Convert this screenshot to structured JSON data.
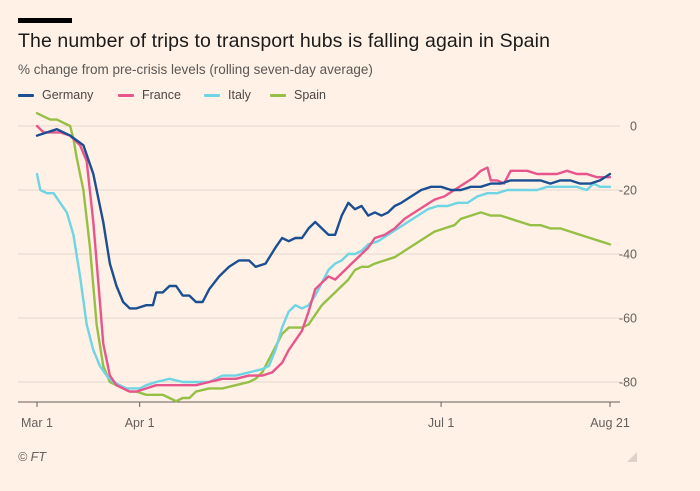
{
  "chart_data": {
    "type": "line",
    "title": "The number of trips to transport hubs is falling again in Spain",
    "subtitle": "% change from pre-crisis levels (rolling seven-day average)",
    "source": "© FT",
    "ylim": [
      -85,
      5
    ],
    "yticks": [
      0,
      -20,
      -40,
      -60,
      -80
    ],
    "ytick_labels": [
      "0",
      "-20",
      "-40",
      "-60",
      "-80"
    ],
    "xlim": [
      0,
      173
    ],
    "xticks": [
      0,
      31,
      122,
      173
    ],
    "xtick_labels": [
      "Mar 1",
      "Apr 1",
      "Jul 1",
      "Aug 21"
    ],
    "grid": true,
    "legend_placement": "top-left",
    "series": [
      {
        "name": "Germany",
        "color": "#1b4f92",
        "points": [
          [
            0,
            -3
          ],
          [
            3,
            -2
          ],
          [
            6,
            -1
          ],
          [
            10,
            -3
          ],
          [
            14,
            -6
          ],
          [
            17,
            -15
          ],
          [
            20,
            -30
          ],
          [
            22,
            -43
          ],
          [
            24,
            -50
          ],
          [
            26,
            -55
          ],
          [
            28,
            -57
          ],
          [
            30,
            -57
          ],
          [
            33,
            -56
          ],
          [
            35,
            -56
          ],
          [
            36,
            -52
          ],
          [
            38,
            -52
          ],
          [
            40,
            -50
          ],
          [
            42,
            -50
          ],
          [
            44,
            -53
          ],
          [
            46,
            -53
          ],
          [
            48,
            -55
          ],
          [
            50,
            -55
          ],
          [
            52,
            -51
          ],
          [
            55,
            -47
          ],
          [
            58,
            -44
          ],
          [
            61,
            -42
          ],
          [
            64,
            -42
          ],
          [
            66,
            -44
          ],
          [
            69,
            -43
          ],
          [
            72,
            -38
          ],
          [
            74,
            -35
          ],
          [
            76,
            -36
          ],
          [
            78,
            -35
          ],
          [
            80,
            -35
          ],
          [
            82,
            -32
          ],
          [
            84,
            -30
          ],
          [
            86,
            -32
          ],
          [
            88,
            -34
          ],
          [
            90,
            -34
          ],
          [
            92,
            -28
          ],
          [
            94,
            -24
          ],
          [
            96,
            -26
          ],
          [
            98,
            -25
          ],
          [
            100,
            -28
          ],
          [
            102,
            -27
          ],
          [
            104,
            -28
          ],
          [
            106,
            -27
          ],
          [
            108,
            -25
          ],
          [
            110,
            -24
          ],
          [
            113,
            -22
          ],
          [
            116,
            -20
          ],
          [
            119,
            -19
          ],
          [
            122,
            -19
          ],
          [
            125,
            -20
          ],
          [
            128,
            -20
          ],
          [
            131,
            -19
          ],
          [
            134,
            -19
          ],
          [
            137,
            -18
          ],
          [
            140,
            -18
          ],
          [
            143,
            -17
          ],
          [
            146,
            -17
          ],
          [
            149,
            -17
          ],
          [
            152,
            -17
          ],
          [
            155,
            -18
          ],
          [
            158,
            -17
          ],
          [
            161,
            -17
          ],
          [
            164,
            -18
          ],
          [
            167,
            -18
          ],
          [
            170,
            -17
          ],
          [
            173,
            -15
          ]
        ]
      },
      {
        "name": "France",
        "color": "#e8558d",
        "points": [
          [
            0,
            0
          ],
          [
            2,
            -2
          ],
          [
            4,
            -2
          ],
          [
            7,
            -2
          ],
          [
            10,
            -3
          ],
          [
            13,
            -6
          ],
          [
            15,
            -11
          ],
          [
            17,
            -30
          ],
          [
            19,
            -55
          ],
          [
            20,
            -68
          ],
          [
            22,
            -78
          ],
          [
            24,
            -81
          ],
          [
            26,
            -82
          ],
          [
            28,
            -83
          ],
          [
            30,
            -83
          ],
          [
            33,
            -82
          ],
          [
            36,
            -81
          ],
          [
            40,
            -81
          ],
          [
            44,
            -81
          ],
          [
            48,
            -81
          ],
          [
            52,
            -80
          ],
          [
            56,
            -79
          ],
          [
            60,
            -79
          ],
          [
            64,
            -78
          ],
          [
            68,
            -78
          ],
          [
            71,
            -77
          ],
          [
            74,
            -74
          ],
          [
            76,
            -70
          ],
          [
            78,
            -67
          ],
          [
            80,
            -64
          ],
          [
            82,
            -58
          ],
          [
            84,
            -51
          ],
          [
            86,
            -49
          ],
          [
            88,
            -47
          ],
          [
            90,
            -48
          ],
          [
            92,
            -46
          ],
          [
            94,
            -44
          ],
          [
            96,
            -42
          ],
          [
            98,
            -40
          ],
          [
            100,
            -38
          ],
          [
            102,
            -35
          ],
          [
            105,
            -34
          ],
          [
            108,
            -32
          ],
          [
            111,
            -29
          ],
          [
            114,
            -27
          ],
          [
            117,
            -25
          ],
          [
            120,
            -23
          ],
          [
            123,
            -22
          ],
          [
            126,
            -20
          ],
          [
            129,
            -18
          ],
          [
            132,
            -16
          ],
          [
            134,
            -14
          ],
          [
            136,
            -13
          ],
          [
            137,
            -17
          ],
          [
            139,
            -17
          ],
          [
            141,
            -18
          ],
          [
            143,
            -14
          ],
          [
            145,
            -14
          ],
          [
            148,
            -14
          ],
          [
            151,
            -15
          ],
          [
            154,
            -15
          ],
          [
            157,
            -15
          ],
          [
            160,
            -14
          ],
          [
            163,
            -15
          ],
          [
            166,
            -15
          ],
          [
            169,
            -16
          ],
          [
            172,
            -16
          ],
          [
            173,
            -16
          ]
        ]
      },
      {
        "name": "Italy",
        "color": "#6fd4e4",
        "points": [
          [
            0,
            -15
          ],
          [
            1,
            -20
          ],
          [
            3,
            -21
          ],
          [
            5,
            -21
          ],
          [
            7,
            -24
          ],
          [
            9,
            -27
          ],
          [
            11,
            -34
          ],
          [
            13,
            -47
          ],
          [
            15,
            -62
          ],
          [
            17,
            -70
          ],
          [
            19,
            -75
          ],
          [
            21,
            -78
          ],
          [
            23,
            -80
          ],
          [
            25,
            -81
          ],
          [
            27,
            -82
          ],
          [
            29,
            -82
          ],
          [
            31,
            -82
          ],
          [
            33,
            -81
          ],
          [
            36,
            -80
          ],
          [
            40,
            -79
          ],
          [
            44,
            -80
          ],
          [
            48,
            -80
          ],
          [
            52,
            -80
          ],
          [
            56,
            -78
          ],
          [
            60,
            -78
          ],
          [
            64,
            -77
          ],
          [
            68,
            -76
          ],
          [
            70,
            -75
          ],
          [
            72,
            -70
          ],
          [
            74,
            -63
          ],
          [
            76,
            -58
          ],
          [
            78,
            -56
          ],
          [
            80,
            -57
          ],
          [
            82,
            -56
          ],
          [
            84,
            -53
          ],
          [
            86,
            -49
          ],
          [
            88,
            -45
          ],
          [
            90,
            -43
          ],
          [
            92,
            -42
          ],
          [
            94,
            -40
          ],
          [
            96,
            -40
          ],
          [
            98,
            -39
          ],
          [
            100,
            -37
          ],
          [
            103,
            -36
          ],
          [
            106,
            -34
          ],
          [
            109,
            -32
          ],
          [
            112,
            -30
          ],
          [
            115,
            -28
          ],
          [
            118,
            -26
          ],
          [
            121,
            -25
          ],
          [
            124,
            -25
          ],
          [
            127,
            -24
          ],
          [
            130,
            -24
          ],
          [
            133,
            -22
          ],
          [
            136,
            -21
          ],
          [
            139,
            -21
          ],
          [
            142,
            -20
          ],
          [
            145,
            -20
          ],
          [
            148,
            -20
          ],
          [
            151,
            -20
          ],
          [
            154,
            -19
          ],
          [
            157,
            -19
          ],
          [
            160,
            -19
          ],
          [
            163,
            -19
          ],
          [
            166,
            -20
          ],
          [
            168,
            -18
          ],
          [
            170,
            -19
          ],
          [
            173,
            -19
          ]
        ]
      },
      {
        "name": "Spain",
        "color": "#96bf46",
        "points": [
          [
            0,
            4
          ],
          [
            2,
            3
          ],
          [
            4,
            2
          ],
          [
            6,
            2
          ],
          [
            8,
            1
          ],
          [
            10,
            0
          ],
          [
            11,
            -4
          ],
          [
            12,
            -10
          ],
          [
            14,
            -20
          ],
          [
            16,
            -38
          ],
          [
            18,
            -62
          ],
          [
            20,
            -75
          ],
          [
            22,
            -80
          ],
          [
            24,
            -81
          ],
          [
            26,
            -82
          ],
          [
            28,
            -83
          ],
          [
            30,
            -83
          ],
          [
            33,
            -84
          ],
          [
            36,
            -84
          ],
          [
            38,
            -84
          ],
          [
            40,
            -85
          ],
          [
            42,
            -86
          ],
          [
            44,
            -85
          ],
          [
            46,
            -85
          ],
          [
            48,
            -83
          ],
          [
            52,
            -82
          ],
          [
            56,
            -82
          ],
          [
            60,
            -81
          ],
          [
            64,
            -80
          ],
          [
            66,
            -79
          ],
          [
            68,
            -77
          ],
          [
            70,
            -73
          ],
          [
            72,
            -69
          ],
          [
            74,
            -65
          ],
          [
            76,
            -63
          ],
          [
            78,
            -63
          ],
          [
            80,
            -63
          ],
          [
            82,
            -62
          ],
          [
            84,
            -59
          ],
          [
            86,
            -56
          ],
          [
            88,
            -54
          ],
          [
            90,
            -52
          ],
          [
            92,
            -50
          ],
          [
            94,
            -48
          ],
          [
            96,
            -45
          ],
          [
            98,
            -44
          ],
          [
            100,
            -44
          ],
          [
            102,
            -43
          ],
          [
            105,
            -42
          ],
          [
            108,
            -41
          ],
          [
            111,
            -39
          ],
          [
            114,
            -37
          ],
          [
            117,
            -35
          ],
          [
            120,
            -33
          ],
          [
            123,
            -32
          ],
          [
            126,
            -31
          ],
          [
            128,
            -29
          ],
          [
            131,
            -28
          ],
          [
            134,
            -27
          ],
          [
            137,
            -28
          ],
          [
            140,
            -28
          ],
          [
            143,
            -29
          ],
          [
            146,
            -30
          ],
          [
            149,
            -31
          ],
          [
            152,
            -31
          ],
          [
            155,
            -32
          ],
          [
            158,
            -32
          ],
          [
            161,
            -33
          ],
          [
            164,
            -34
          ],
          [
            167,
            -35
          ],
          [
            170,
            -36
          ],
          [
            173,
            -37
          ]
        ]
      }
    ]
  },
  "colors": {
    "background": "#fff1e5",
    "gridline": "#e3d7ce",
    "baseline": "#66605c"
  },
  "decor": {
    "corner_mark_icon": "corner-fold-icon"
  }
}
